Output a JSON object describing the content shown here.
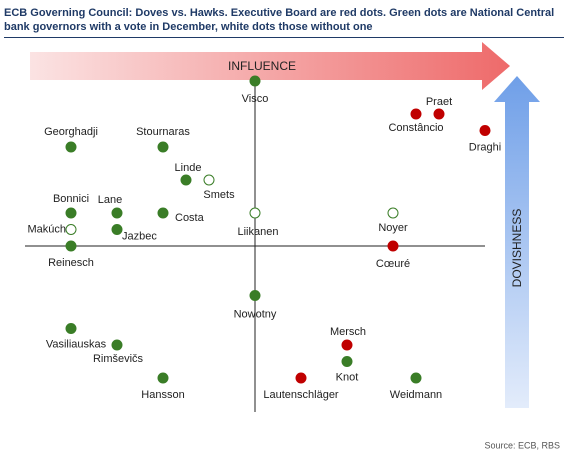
{
  "title": "ECB Governing Council: Doves vs. Hawks. Executive Board are red dots. Green dots are National Central bank governors with a vote in December, white dots those without one",
  "source": "Source: ECB, RBS",
  "chart_data": {
    "type": "scatter",
    "xlabel": "INFLUENCE",
    "ylabel": "DOVISHNESS",
    "labels": [
      "Visco",
      "Georghadji",
      "Stournaras",
      "Linde",
      "Smets",
      "Bonnici",
      "Lane",
      "Costa",
      "Liikanen",
      "Noyer",
      "Makúch",
      "Jazbec",
      "Reinesch",
      "Cœuré",
      "Praet",
      "Constâncio",
      "Draghi",
      "Nowotny",
      "Vasiliauskas",
      "Rimševičs",
      "Mersch",
      "Knot",
      "Lautenschläger",
      "Hansson",
      "Weidmann"
    ],
    "x": [
      0,
      -4,
      -2,
      -1.5,
      -1,
      -4,
      -3,
      -2,
      0,
      3,
      -4,
      -3,
      -4,
      3,
      4,
      3.5,
      5,
      0,
      -4,
      -3,
      2,
      2,
      1,
      -2,
      3.5
    ],
    "y": [
      5,
      3,
      3,
      2,
      2,
      1,
      1,
      1,
      1,
      1,
      0.5,
      0.5,
      0,
      0,
      4,
      4,
      3.5,
      -1.5,
      -2.5,
      -3,
      -3,
      -3.5,
      -4,
      -4,
      -4
    ],
    "colors": [
      "#3a7d27",
      "#3a7d27",
      "#3a7d27",
      "#3a7d27",
      "#ffffff",
      "#3a7d27",
      "#3a7d27",
      "#3a7d27",
      "#ffffff",
      "#ffffff",
      "#ffffff",
      "#3a7d27",
      "#3a7d27",
      "#c00000",
      "#c00000",
      "#c00000",
      "#c00000",
      "#3a7d27",
      "#3a7d27",
      "#3a7d27",
      "#c00000",
      "#3a7d27",
      "#c00000",
      "#3a7d27",
      "#3a7d27"
    ],
    "xlim": [
      -5,
      5
    ],
    "ylim": [
      -5,
      5
    ]
  }
}
